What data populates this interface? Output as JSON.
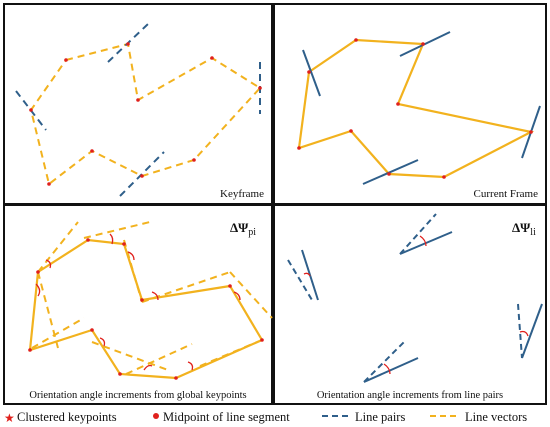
{
  "panels": {
    "keyframe": {
      "label": "Keyframe"
    },
    "current_frame": {
      "label": "Current Frame"
    },
    "global_increments": {
      "symbol": "ΔΨ",
      "subscript": "pi",
      "caption": "Orientation angle increments from global keypoints"
    },
    "line_increments": {
      "symbol": "ΔΨ",
      "subscript": "li",
      "caption": "Orientation angle increments from line pairs"
    }
  },
  "legend": {
    "clustered_keypoints": "Clustered keypoints",
    "midpoint": "Midpoint of line segment",
    "line_pairs": "Line pairs",
    "line_vectors": "Line vectors"
  },
  "colors": {
    "orange": "#f2b21e",
    "blue": "#2f5f8a",
    "red": "#e0201c",
    "border": "#111111"
  }
}
